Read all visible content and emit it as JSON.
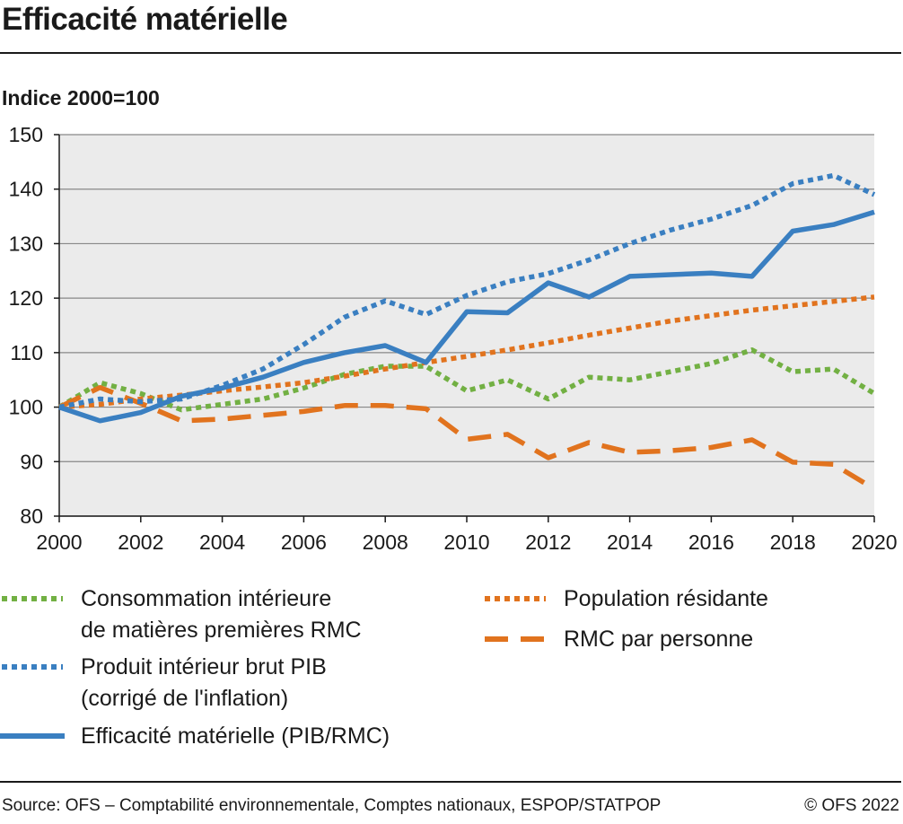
{
  "header": {
    "title": "Efficacité matérielle"
  },
  "footer": {
    "source": "Source: OFS – Comptabilité environnementale, Comptes nationaux, ESPOP/STATPOP",
    "copyright": "© OFS 2022"
  },
  "colors": {
    "green": "#72b043",
    "blue": "#3a7fc1",
    "orange": "#e1731e",
    "plot_bg": "#ebebeb",
    "grid": "#888888"
  },
  "chart_data": {
    "type": "line",
    "title": "Efficacité matérielle",
    "ylabel": "Indice 2000=100",
    "xlabel": "",
    "xlim": [
      2000,
      2020
    ],
    "ylim": [
      80,
      150
    ],
    "xticks": [
      2000,
      2002,
      2004,
      2006,
      2008,
      2010,
      2012,
      2014,
      2016,
      2018,
      2020
    ],
    "yticks": [
      80,
      90,
      100,
      110,
      120,
      130,
      140,
      150
    ],
    "grid": true,
    "x": [
      2000,
      2001,
      2002,
      2003,
      2004,
      2005,
      2006,
      2007,
      2008,
      2009,
      2010,
      2011,
      2012,
      2013,
      2014,
      2015,
      2016,
      2017,
      2018,
      2019,
      2020
    ],
    "series": [
      {
        "name": "Consommation intérieure\nde matières premières RMC",
        "color": "#72b043",
        "style": "dotted",
        "values": [
          100,
          104.5,
          102.5,
          99.5,
          100.5,
          101.5,
          103.5,
          106,
          107.5,
          107.5,
          103,
          105,
          101.5,
          105.5,
          105,
          106.5,
          108,
          110.5,
          106.5,
          107,
          102.5
        ]
      },
      {
        "name": "Produit intérieur brut PIB\n(corrigé de l'inflation)",
        "color": "#3a7fc1",
        "style": "dotted",
        "values": [
          100,
          101.5,
          101,
          101.5,
          104,
          107,
          111.5,
          116.5,
          119.5,
          117,
          120.5,
          123,
          124.5,
          127,
          130,
          132.5,
          134.5,
          137,
          141,
          142.5,
          139
        ]
      },
      {
        "name": "Efficacité matérielle (PIB/RMC)",
        "color": "#3a7fc1",
        "style": "solid",
        "values": [
          100,
          97.5,
          99,
          102,
          103.5,
          105.5,
          108.2,
          110,
          111.3,
          108.2,
          117.5,
          117.3,
          122.8,
          120.2,
          124,
          124.3,
          124.6,
          124,
          132.3,
          133.5,
          135.8
        ]
      },
      {
        "name": "Population résidante",
        "color": "#e1731e",
        "style": "dotted",
        "values": [
          100,
          100.5,
          101.5,
          102.2,
          103,
          103.7,
          104.5,
          105.7,
          107,
          108.2,
          109.3,
          110.5,
          111.8,
          113.2,
          114.5,
          115.8,
          116.8,
          117.8,
          118.6,
          119.4,
          120.2
        ]
      },
      {
        "name": "RMC par personne",
        "color": "#e1731e",
        "style": "dashed",
        "values": [
          100,
          103.6,
          100.7,
          97.5,
          97.8,
          98.5,
          99.2,
          100.3,
          100.3,
          99.7,
          94.1,
          95,
          90.7,
          93.5,
          91.7,
          92,
          92.6,
          94,
          89.9,
          89.5,
          85
        ]
      }
    ]
  }
}
